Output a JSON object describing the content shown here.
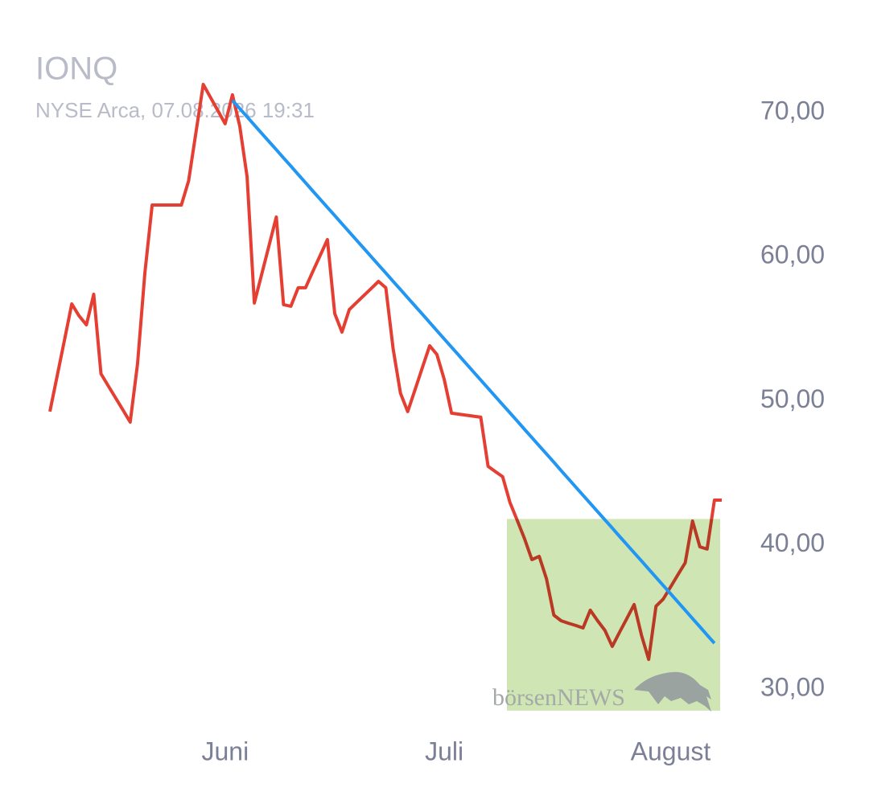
{
  "chart_data": {
    "type": "line",
    "title": "IONQ",
    "subtitle": "NYSE Arca, 07.08.2026 19:31",
    "watermark": "börsenNEWS",
    "categories": [
      null,
      null,
      null,
      null,
      null,
      null,
      null,
      null,
      null,
      null,
      null,
      null,
      null,
      null,
      null,
      null,
      null,
      null,
      null,
      null,
      null,
      null,
      null,
      null,
      "Juni",
      null,
      null,
      null,
      null,
      null,
      null,
      null,
      null,
      null,
      null,
      null,
      null,
      null,
      null,
      null,
      null,
      null,
      null,
      null,
      null,
      null,
      null,
      null,
      null,
      null,
      null,
      null,
      null,
      null,
      "Juli",
      null,
      null,
      null,
      null,
      null,
      null,
      null,
      null,
      null,
      null,
      null,
      null,
      null,
      null,
      null,
      null,
      null,
      null,
      null,
      null,
      null,
      null,
      null,
      null,
      null,
      null,
      null,
      null,
      null,
      null,
      "August",
      null,
      null,
      null,
      null,
      null,
      null,
      null
    ],
    "series": [
      {
        "color": "#e53f33",
        "values": [
          49.25,
          51.74,
          54.23,
          56.72,
          55.89,
          55.27,
          57.39,
          51.87,
          51.03,
          50.2,
          49.36,
          48.52,
          52.54,
          58.84,
          63.58,
          63.58,
          63.58,
          63.58,
          63.58,
          65.26,
          68.61,
          71.95,
          71.04,
          70.13,
          69.22,
          71.23,
          69.05,
          65.54,
          56.78,
          58.77,
          60.76,
          62.75,
          56.67,
          56.56,
          57.84,
          57.84,
          58.96,
          60.07,
          61.19,
          56.05,
          54.77,
          56.33,
          56.82,
          57.31,
          57.79,
          58.28,
          57.84,
          53.6,
          50.53,
          49.25,
          50.77,
          52.3,
          53.82,
          53.21,
          51.48,
          49.14,
          49.07,
          49.0,
          48.93,
          48.86,
          45.45,
          45.09,
          44.73,
          42.94,
          41.69,
          40.43,
          38.98,
          39.21,
          37.64,
          35.13,
          34.74,
          34.57,
          34.41,
          34.24,
          35.47,
          34.74,
          34.07,
          32.96,
          33.93,
          34.89,
          35.86,
          33.74,
          32.06,
          35.75,
          36.25,
          37.09,
          37.93,
          38.76,
          41.66,
          39.87,
          39.71,
          43.11,
          43.11
        ]
      },
      {
        "color": "#2196f3",
        "values": [
          null,
          null,
          null,
          null,
          null,
          null,
          null,
          null,
          null,
          null,
          null,
          null,
          null,
          null,
          null,
          null,
          null,
          null,
          null,
          null,
          null,
          null,
          null,
          null,
          null,
          70.84,
          70.27,
          69.7,
          69.13,
          68.56,
          67.99,
          67.42,
          66.85,
          66.28,
          65.7,
          65.13,
          64.56,
          63.99,
          63.42,
          62.85,
          62.28,
          61.71,
          61.14,
          60.57,
          60.0,
          59.43,
          58.86,
          58.29,
          57.72,
          57.15,
          56.58,
          56.01,
          55.43,
          54.86,
          54.29,
          53.72,
          53.15,
          52.58,
          52.01,
          51.44,
          50.87,
          50.3,
          49.73,
          49.16,
          48.59,
          48.02,
          47.45,
          46.88,
          46.31,
          45.74,
          45.16,
          44.59,
          44.02,
          43.45,
          42.88,
          42.31,
          41.74,
          41.17,
          40.6,
          40.03,
          39.46,
          38.89,
          38.32,
          37.75,
          37.18,
          36.61,
          36.04,
          35.47,
          34.89,
          34.32,
          33.75,
          33.18,
          null
        ]
      }
    ],
    "highlight": {
      "color": "#cfe6b4",
      "ylim": [
        28.5,
        41.8
      ]
    },
    "ylim": [
      27.6,
      74.46
    ],
    "yticks": [
      {
        "value": 30,
        "label": "30,00"
      },
      {
        "value": 40,
        "label": "40,00"
      },
      {
        "value": 50,
        "label": "50,00"
      },
      {
        "value": 60,
        "label": "60,00"
      },
      {
        "value": 70,
        "label": "70,00"
      }
    ],
    "grid": false
  }
}
